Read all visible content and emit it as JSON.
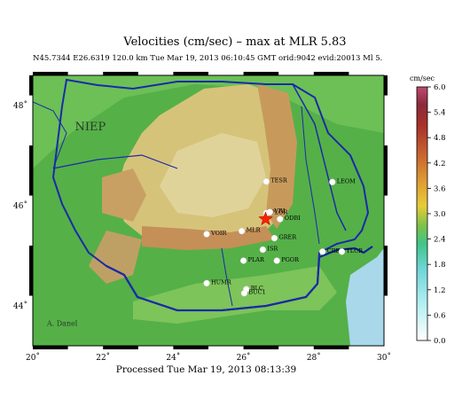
{
  "header": {
    "title": "Velocities (cm/sec)  –   max at MLR     5.83",
    "subtitle": "N45.7344 E26.6319 120.0 km Tue Mar 19, 2013 06:10:45 GMT   orid:9042  evid:20013  Ml 5.30"
  },
  "footer": {
    "processed": "Processed  Tue Mar 19, 2013 08:13:39"
  },
  "map": {
    "lon_range": [
      20,
      30
    ],
    "lat_range": [
      43.2,
      48.6
    ],
    "lon_ticks": [
      {
        "value": 20,
        "label": "20˚"
      },
      {
        "value": 22,
        "label": "22˚"
      },
      {
        "value": 24,
        "label": "24˚"
      },
      {
        "value": 26,
        "label": "26˚"
      },
      {
        "value": 28,
        "label": "28˚"
      },
      {
        "value": 30,
        "label": "30˚"
      }
    ],
    "lat_ticks": [
      {
        "value": 44,
        "label": "44˚"
      },
      {
        "value": 46,
        "label": "46˚"
      },
      {
        "value": 48,
        "label": "48˚"
      }
    ],
    "region_labels": [
      {
        "text": "NIEP",
        "lon": 21.2,
        "lat": 47.5
      },
      {
        "text": "A. Danel",
        "lon": 20.4,
        "lat": 43.6
      }
    ],
    "epicenter": {
      "lon": 26.63,
      "lat": 45.73,
      "color": "#ff2000"
    },
    "stations": [
      {
        "code": "TESR",
        "lon": 26.65,
        "lat": 46.48
      },
      {
        "code": "LEOM",
        "lon": 28.53,
        "lat": 46.47
      },
      {
        "code": "PLOR",
        "lon": 26.65,
        "lat": 45.85
      },
      {
        "code": "VRI",
        "lon": 26.75,
        "lat": 45.87
      },
      {
        "code": "ODBI",
        "lon": 27.04,
        "lat": 45.73
      },
      {
        "code": "VOIR",
        "lon": 24.95,
        "lat": 45.43
      },
      {
        "code": "MLR",
        "lon": 25.95,
        "lat": 45.49
      },
      {
        "code": "GRER",
        "lon": 26.88,
        "lat": 45.35
      },
      {
        "code": "ISR",
        "lon": 26.55,
        "lat": 45.12
      },
      {
        "code": "CRE",
        "lon": 28.25,
        "lat": 45.08
      },
      {
        "code": "TLCR",
        "lon": 28.8,
        "lat": 45.08
      },
      {
        "code": "PLAR",
        "lon": 26.0,
        "lat": 44.9
      },
      {
        "code": "PGOR",
        "lon": 26.95,
        "lat": 44.9
      },
      {
        "code": "HUMR",
        "lon": 24.95,
        "lat": 44.45
      },
      {
        "code": "BLC",
        "lon": 26.08,
        "lat": 44.33
      },
      {
        "code": "BUC1",
        "lon": 26.02,
        "lat": 44.25
      }
    ]
  },
  "colorbar": {
    "unit_label": "cm/sec",
    "ticks": [
      "6.0",
      "5.4",
      "4.8",
      "4.2",
      "3.6",
      "3.0",
      "2.4",
      "1.8",
      "1.2",
      "0.6",
      "0.0"
    ],
    "colors": [
      "#ffffff",
      "#b4ecf0",
      "#7fd6dc",
      "#40c9a0",
      "#2fa85a",
      "#6ec04a",
      "#b9cc4a",
      "#e9cc3a",
      "#e0a030",
      "#d07830",
      "#c05030",
      "#b03a2a",
      "#9a2a2a",
      "#c04a6a"
    ]
  }
}
